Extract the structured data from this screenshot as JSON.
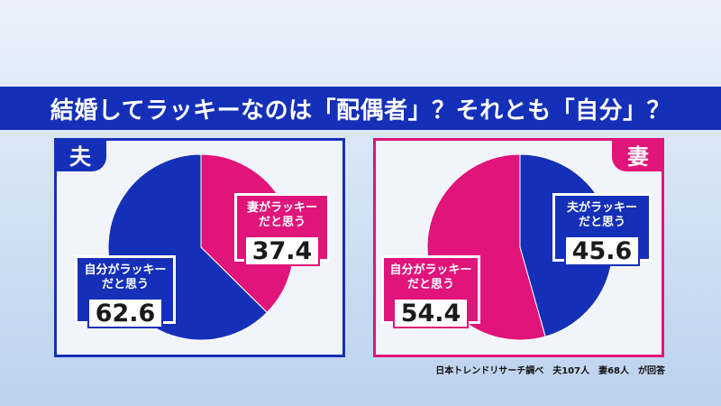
{
  "title": "結婚してラッキーなのは「配偶者」？それとも「自分」？",
  "source": "日本トレンドリサーチ調べ　夫107人　妻68人　が回答",
  "colors": {
    "blue": "#1530b8",
    "pink": "#e0147a"
  },
  "chart_data": [
    {
      "type": "pie",
      "title": "夫",
      "slices": [
        {
          "label": "妻がラッキー\nだと思う",
          "value": 37.4,
          "color": "#e0147a"
        },
        {
          "label": "自分がラッキー\nだと思う",
          "value": 62.6,
          "color": "#1530b8"
        }
      ]
    },
    {
      "type": "pie",
      "title": "妻",
      "slices": [
        {
          "label": "夫がラッキー\nだと思う",
          "value": 45.6,
          "color": "#1530b8"
        },
        {
          "label": "自分がラッキー\nだと思う",
          "value": 54.4,
          "color": "#e0147a"
        }
      ]
    }
  ]
}
